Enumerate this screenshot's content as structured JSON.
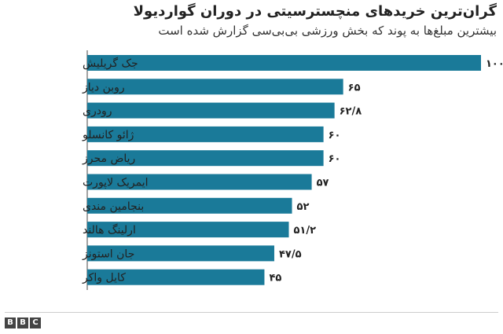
{
  "title": "گران‌ترین خریدهای منچسترسیتی در دوران گواردیولا",
  "subtitle": "بیشترین مبلغ‌ها به پوند که بخش ورزشی بی‌بی‌سی گزارش شده است",
  "logo_text": [
    "B",
    "B",
    "C"
  ],
  "colors": {
    "bar": "#1a7a99",
    "text": "#222222",
    "axis": "#444444"
  },
  "chart_data": {
    "type": "bar",
    "orientation": "horizontal",
    "title": "گران‌ترین خریدهای منچسترسیتی در دوران گواردیولا",
    "subtitle": "بیشترین مبلغ‌ها به پوند که بخش ورزشی بی‌بی‌سی گزارش شده است",
    "xlim": [
      0,
      100
    ],
    "grid": false,
    "categories": [
      "جک گریلیش",
      "روبن دیاز",
      "رودری",
      "ژائو کانسلو",
      "ریاض محرز",
      "ایمریک لاپورت",
      "بنجامین مندی",
      "ارلینگ هالند",
      "جان استونز",
      "کایل واکر"
    ],
    "values": [
      100,
      65,
      62.8,
      60,
      60,
      57,
      52,
      51.2,
      47.5,
      45
    ],
    "value_labels": [
      "۱۰۰",
      "۶۵",
      "۶۲/۸",
      "۶۰",
      "۶۰",
      "۵۷",
      "۵۲",
      "۵۱/۲",
      "۴۷/۵",
      "۴۵"
    ]
  }
}
